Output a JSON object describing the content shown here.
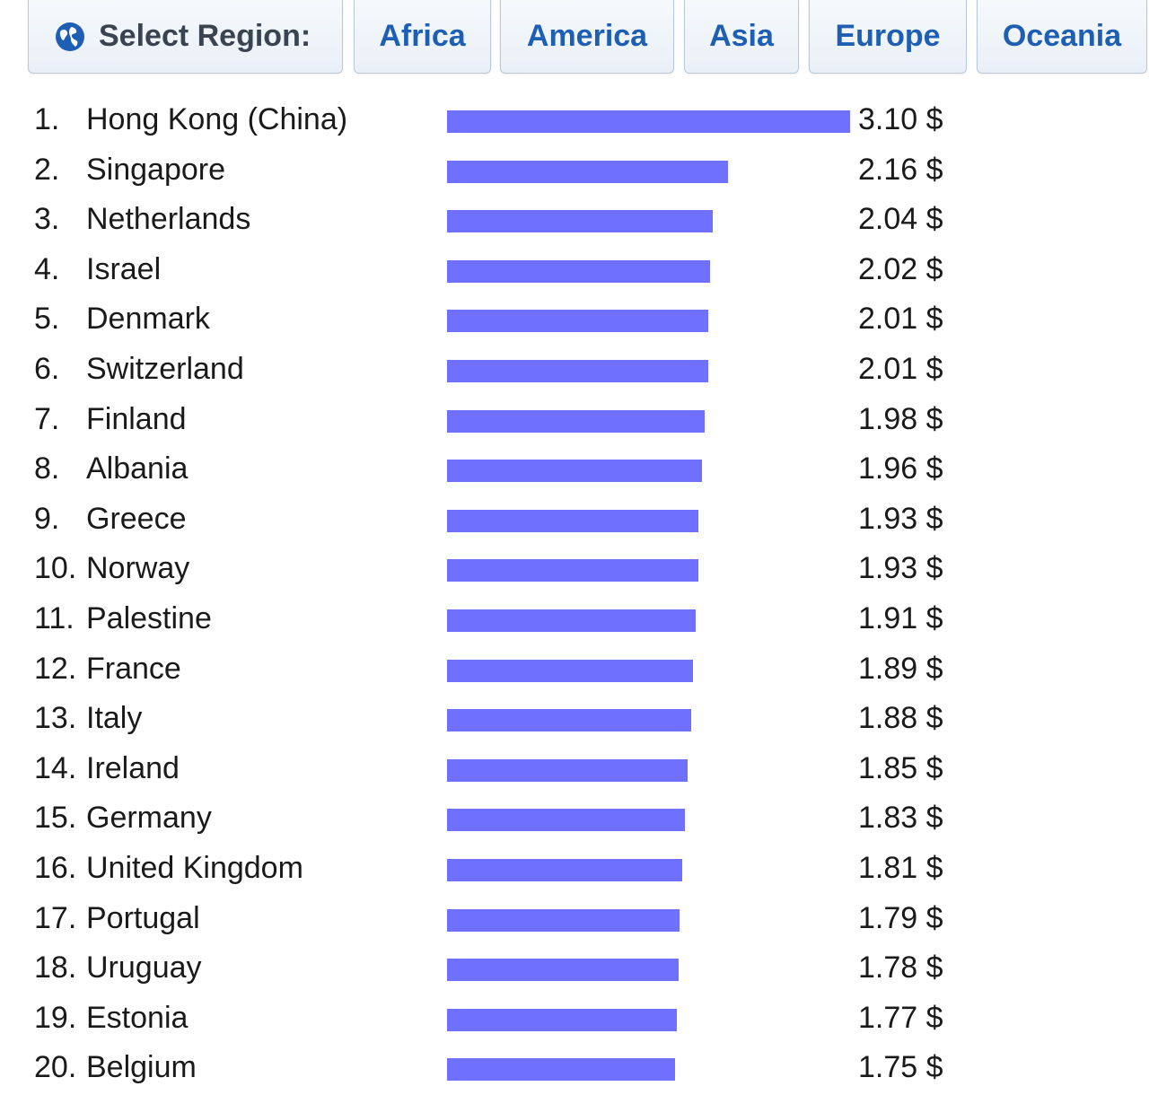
{
  "region_selector": {
    "label": "Select Region:",
    "icon": "globe-icon",
    "regions": [
      "Africa",
      "America",
      "Asia",
      "Europe",
      "Oceania"
    ]
  },
  "chart_data": {
    "type": "bar",
    "orientation": "horizontal",
    "bar_color": "#7070ff",
    "unit": "$",
    "rows": [
      {
        "rank": "1.",
        "country": "Hong Kong (China)",
        "value": 3.1,
        "label": "3.10 $"
      },
      {
        "rank": "2.",
        "country": "Singapore",
        "value": 2.16,
        "label": "2.16 $"
      },
      {
        "rank": "3.",
        "country": "Netherlands",
        "value": 2.04,
        "label": "2.04 $"
      },
      {
        "rank": "4.",
        "country": "Israel",
        "value": 2.02,
        "label": "2.02 $"
      },
      {
        "rank": "5.",
        "country": "Denmark",
        "value": 2.01,
        "label": "2.01 $"
      },
      {
        "rank": "6.",
        "country": "Switzerland",
        "value": 2.01,
        "label": "2.01 $"
      },
      {
        "rank": "7.",
        "country": "Finland",
        "value": 1.98,
        "label": "1.98 $"
      },
      {
        "rank": "8.",
        "country": "Albania",
        "value": 1.96,
        "label": "1.96 $"
      },
      {
        "rank": "9.",
        "country": "Greece",
        "value": 1.93,
        "label": "1.93 $"
      },
      {
        "rank": "10.",
        "country": "Norway",
        "value": 1.93,
        "label": "1.93 $"
      },
      {
        "rank": "11.",
        "country": "Palestine",
        "value": 1.91,
        "label": "1.91 $"
      },
      {
        "rank": "12.",
        "country": "France",
        "value": 1.89,
        "label": "1.89 $"
      },
      {
        "rank": "13.",
        "country": "Italy",
        "value": 1.88,
        "label": "1.88 $"
      },
      {
        "rank": "14.",
        "country": "Ireland",
        "value": 1.85,
        "label": "1.85 $"
      },
      {
        "rank": "15.",
        "country": "Germany",
        "value": 1.83,
        "label": "1.83 $"
      },
      {
        "rank": "16.",
        "country": "United Kingdom",
        "value": 1.81,
        "label": "1.81 $"
      },
      {
        "rank": "17.",
        "country": "Portugal",
        "value": 1.79,
        "label": "1.79 $"
      },
      {
        "rank": "18.",
        "country": "Uruguay",
        "value": 1.78,
        "label": "1.78 $"
      },
      {
        "rank": "19.",
        "country": "Estonia",
        "value": 1.77,
        "label": "1.77 $"
      },
      {
        "rank": "20.",
        "country": "Belgium",
        "value": 1.75,
        "label": "1.75 $"
      }
    ]
  }
}
